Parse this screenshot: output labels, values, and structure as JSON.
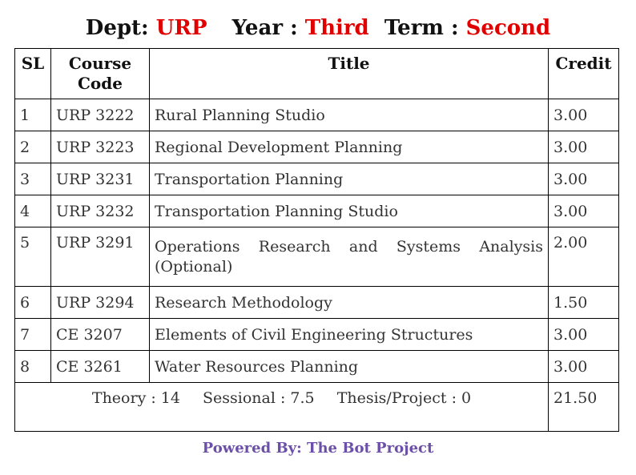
{
  "heading": {
    "dept_label": "Dept:",
    "dept_value": "URP",
    "year_label": "Year :",
    "year_value": "Third",
    "term_label": "Term :",
    "term_value": "Second"
  },
  "table": {
    "headers": {
      "sl": "SL",
      "code_line1": "Course",
      "code_line2": "Code",
      "title": "Title",
      "credit": "Credit"
    },
    "rows": [
      {
        "sl": "1",
        "code": "URP 3222",
        "title": "Rural Planning Studio",
        "credit": "3.00"
      },
      {
        "sl": "2",
        "code": "URP 3223",
        "title": "Regional Development Planning",
        "credit": "3.00"
      },
      {
        "sl": "3",
        "code": "URP 3231",
        "title": "Transportation Planning",
        "credit": "3.00"
      },
      {
        "sl": "4",
        "code": "URP 3232",
        "title": "Transportation Planning Studio",
        "credit": "3.00"
      },
      {
        "sl": "5",
        "code": "URP 3291",
        "title": "Operations Research and Systems Analysis (Optional)",
        "credit": "2.00"
      },
      {
        "sl": "6",
        "code": "URP 3294",
        "title": "Research Methodology",
        "credit": "1.50"
      },
      {
        "sl": "7",
        "code": "CE 3207",
        "title": "Elements of Civil Engineering Structures",
        "credit": "3.00"
      },
      {
        "sl": "8",
        "code": "CE 3261",
        "title": "Water Resources Planning",
        "credit": "3.00"
      }
    ],
    "totals": {
      "theory": "Theory : 14",
      "sessional": "Sessional : 7.5",
      "thesis": "Thesis/Project : 0",
      "credit_total": "21.50"
    }
  },
  "footer": {
    "text": "Powered By: The Bot Project",
    "color": "#6c4fa8"
  },
  "colors": {
    "accent_red": "#e00000"
  }
}
